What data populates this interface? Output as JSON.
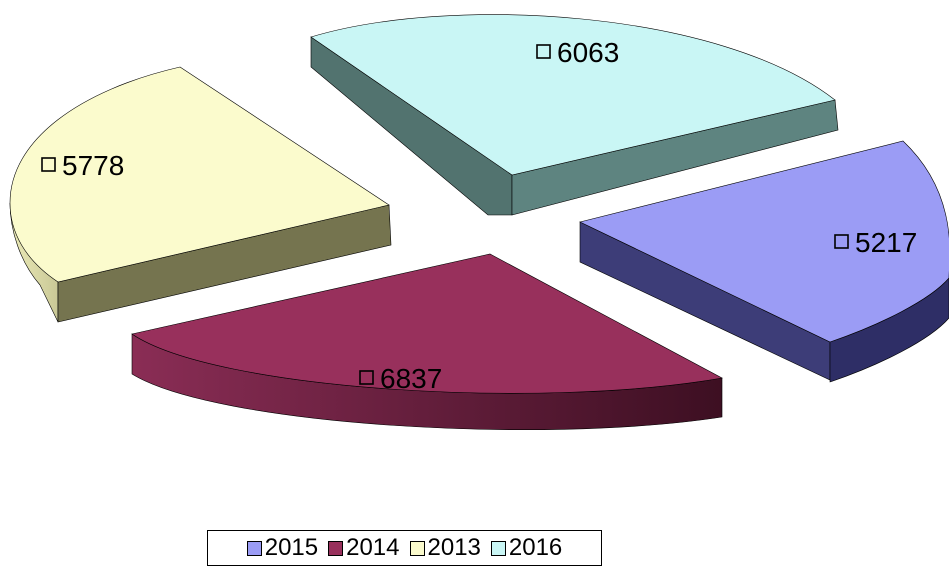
{
  "chart_data": {
    "type": "pie",
    "style": "3d-exploded",
    "categories": [
      "2015",
      "2014",
      "2013",
      "2016"
    ],
    "values": [
      5217,
      6837,
      5778,
      6063
    ],
    "colors": [
      "#9b9cf5",
      "#98305c",
      "#fbfbcd",
      "#c9f6f5"
    ],
    "data_labels": [
      "5217",
      "6837",
      "5778",
      "6063"
    ],
    "legend": {
      "position": "bottom",
      "entries": [
        "2015",
        "2014",
        "2013",
        "2016"
      ]
    }
  }
}
